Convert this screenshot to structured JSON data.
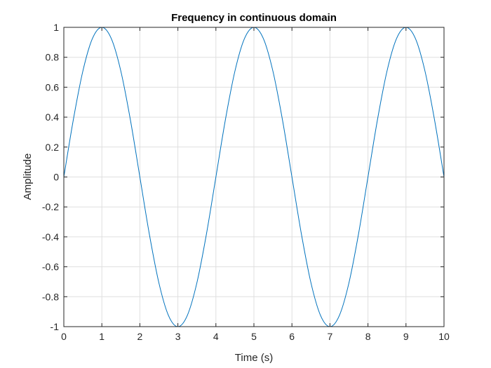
{
  "chart_data": {
    "type": "line",
    "title": "Frequency in continuous domain",
    "xlabel": "Time (s)",
    "ylabel": "Amplitude",
    "xlim": [
      0,
      10
    ],
    "ylim": [
      -1,
      1
    ],
    "xticks": [
      "0",
      "1",
      "2",
      "3",
      "4",
      "5",
      "6",
      "7",
      "8",
      "9",
      "10"
    ],
    "yticks": [
      "-1",
      "-0.8",
      "-0.6",
      "-0.4",
      "-0.2",
      "0",
      "0.2",
      "0.4",
      "0.6",
      "0.8",
      "1"
    ],
    "grid": true,
    "series": [
      {
        "color": "#0072bd",
        "x": [
          0,
          0.25,
          0.5,
          0.75,
          1,
          1.25,
          1.5,
          1.75,
          2,
          2.25,
          2.5,
          2.75,
          3,
          3.25,
          3.5,
          3.75,
          4,
          4.25,
          4.5,
          4.75,
          5,
          5.25,
          5.5,
          5.75,
          6,
          6.25,
          6.5,
          6.75,
          7,
          7.25,
          7.5,
          7.75,
          8,
          8.25,
          8.5,
          8.75,
          9,
          9.25,
          9.5,
          9.75,
          10
        ],
        "y": [
          0,
          0.383,
          0.707,
          0.924,
          1,
          0.924,
          0.707,
          0.383,
          0,
          -0.383,
          -0.707,
          -0.924,
          -1,
          -0.924,
          -0.707,
          -0.383,
          0,
          0.383,
          0.707,
          0.924,
          1,
          0.924,
          0.707,
          0.383,
          0,
          -0.383,
          -0.707,
          -0.924,
          -1,
          -0.924,
          -0.707,
          -0.383,
          0,
          0.383,
          0.707,
          0.924,
          1,
          0.924,
          0.707,
          0.383,
          0
        ]
      }
    ]
  }
}
